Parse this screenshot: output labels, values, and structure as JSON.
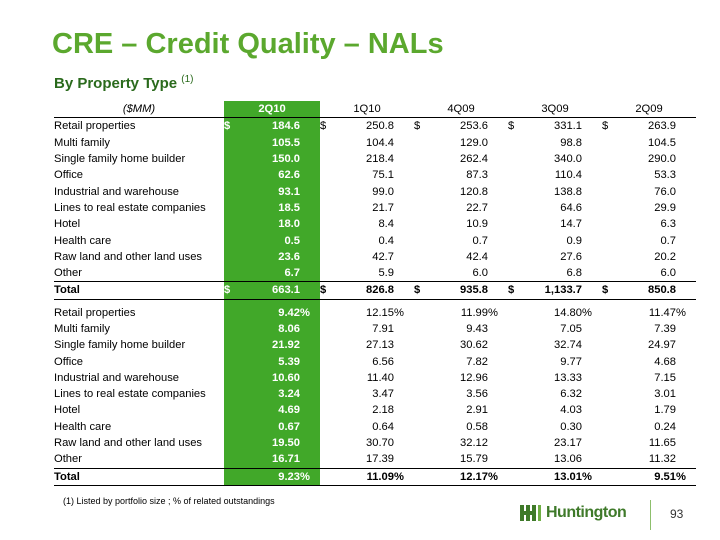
{
  "title": "CRE – Credit Quality – NALs",
  "subtitle": "By Property Type",
  "subtitle_note": "(1)",
  "header": {
    "label": "($MM)",
    "cols": [
      "2Q10",
      "1Q10",
      "4Q09",
      "3Q09",
      "2Q09"
    ]
  },
  "amounts": [
    {
      "label": "Retail properties",
      "cur": [
        "$",
        "$",
        "$",
        "$",
        "$"
      ],
      "vals": [
        "184.6",
        "250.8",
        "253.6",
        "331.1",
        "263.9"
      ]
    },
    {
      "label": "Multi family",
      "cur": [
        "",
        "",
        "",
        "",
        ""
      ],
      "vals": [
        "105.5",
        "104.4",
        "129.0",
        "98.8",
        "104.5"
      ]
    },
    {
      "label": "Single family home builder",
      "cur": [
        "",
        "",
        "",
        "",
        ""
      ],
      "vals": [
        "150.0",
        "218.4",
        "262.4",
        "340.0",
        "290.0"
      ]
    },
    {
      "label": "Office",
      "cur": [
        "",
        "",
        "",
        "",
        ""
      ],
      "vals": [
        "62.6",
        "75.1",
        "87.3",
        "110.4",
        "53.3"
      ]
    },
    {
      "label": "Industrial and warehouse",
      "cur": [
        "",
        "",
        "",
        "",
        ""
      ],
      "vals": [
        "93.1",
        "99.0",
        "120.8",
        "138.8",
        "76.0"
      ]
    },
    {
      "label": "Lines to real estate companies",
      "cur": [
        "",
        "",
        "",
        "",
        ""
      ],
      "vals": [
        "18.5",
        "21.7",
        "22.7",
        "64.6",
        "29.9"
      ]
    },
    {
      "label": "Hotel",
      "cur": [
        "",
        "",
        "",
        "",
        ""
      ],
      "vals": [
        "18.0",
        "8.4",
        "10.9",
        "14.7",
        "6.3"
      ]
    },
    {
      "label": "Health care",
      "cur": [
        "",
        "",
        "",
        "",
        ""
      ],
      "vals": [
        "0.5",
        "0.4",
        "0.7",
        "0.9",
        "0.7"
      ]
    },
    {
      "label": "Raw land and other land uses",
      "cur": [
        "",
        "",
        "",
        "",
        ""
      ],
      "vals": [
        "23.6",
        "42.7",
        "42.4",
        "27.6",
        "20.2"
      ]
    },
    {
      "label": "Other",
      "cur": [
        "",
        "",
        "",
        "",
        ""
      ],
      "vals": [
        "6.7",
        "5.9",
        "6.0",
        "6.8",
        "6.0"
      ]
    }
  ],
  "amounts_total": {
    "label": "Total",
    "cur": [
      "$",
      "$",
      "$",
      "$",
      "$"
    ],
    "vals": [
      "663.1",
      "826.8",
      "935.8",
      "1,133.7",
      "850.8"
    ]
  },
  "percents": [
    {
      "label": "Retail properties",
      "vals": [
        "9.42",
        "12.15",
        "11.99",
        "14.80",
        "11.47"
      ],
      "pct": [
        "%",
        "%",
        "%",
        "%",
        "%"
      ]
    },
    {
      "label": "Multi family",
      "vals": [
        "8.06",
        "7.91",
        "9.43",
        "7.05",
        "7.39"
      ],
      "pct": [
        "",
        "",
        "",
        "",
        ""
      ]
    },
    {
      "label": "Single family home builder",
      "vals": [
        "21.92",
        "27.13",
        "30.62",
        "32.74",
        "24.97"
      ],
      "pct": [
        "",
        "",
        "",
        "",
        ""
      ]
    },
    {
      "label": "Office",
      "vals": [
        "5.39",
        "6.56",
        "7.82",
        "9.77",
        "4.68"
      ],
      "pct": [
        "",
        "",
        "",
        "",
        ""
      ]
    },
    {
      "label": "Industrial and warehouse",
      "vals": [
        "10.60",
        "11.40",
        "12.96",
        "13.33",
        "7.15"
      ],
      "pct": [
        "",
        "",
        "",
        "",
        ""
      ]
    },
    {
      "label": "Lines to real estate companies",
      "vals": [
        "3.24",
        "3.47",
        "3.56",
        "6.32",
        "3.01"
      ],
      "pct": [
        "",
        "",
        "",
        "",
        ""
      ]
    },
    {
      "label": "Hotel",
      "vals": [
        "4.69",
        "2.18",
        "2.91",
        "4.03",
        "1.79"
      ],
      "pct": [
        "",
        "",
        "",
        "",
        ""
      ]
    },
    {
      "label": "Health care",
      "vals": [
        "0.67",
        "0.64",
        "0.58",
        "0.30",
        "0.24"
      ],
      "pct": [
        "",
        "",
        "",
        "",
        ""
      ]
    },
    {
      "label": "Raw land and other land uses",
      "vals": [
        "19.50",
        "30.70",
        "32.12",
        "23.17",
        "11.65"
      ],
      "pct": [
        "",
        "",
        "",
        "",
        ""
      ]
    },
    {
      "label": "Other",
      "vals": [
        "16.71",
        "17.39",
        "15.79",
        "13.06",
        "11.32"
      ],
      "pct": [
        "",
        "",
        "",
        "",
        ""
      ]
    }
  ],
  "percents_total": {
    "label": "Total",
    "vals": [
      "9.23",
      "11.09",
      "12.17",
      "13.01",
      "9.51"
    ],
    "pct": [
      "%",
      "%",
      "%",
      "%",
      "%"
    ]
  },
  "footnote": "(1)  Listed by portfolio size ;  % of related outstandings",
  "logo": {
    "text": "Huntington",
    "icon": "huntington-logo-icon"
  },
  "page_number": "93",
  "colors": {
    "title": "#5ba82e",
    "subtitle": "#2a6a1c",
    "highlight": "#41a829",
    "logo": "#3f7a2a"
  }
}
